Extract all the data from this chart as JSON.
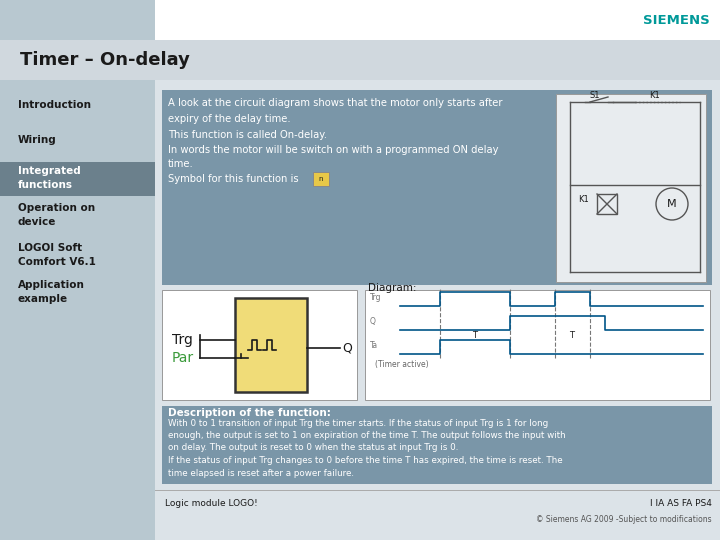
{
  "title": "Timer – On-delay",
  "siemens_color": "#009999",
  "bg_color": "#dce3e8",
  "sidebar_bg": "#b8c8d0",
  "title_bar_bg": "#d0d8de",
  "content_bg": "#7a96a8",
  "white": "#ffffff",
  "dark_text": "#1a1a1a",
  "green_text": "#3a9a3a",
  "signal_color": "#005588",
  "sidebar_items": [
    "Introduction",
    "Wiring",
    "Integrated\nfunctions",
    "Operation on\ndevice",
    "LOGOI Soft\nComfort V6.1",
    "Application\nexample"
  ],
  "sidebar_highlight": 2,
  "intro_text_lines": [
    "A look at the circuit diagram shows that the motor only starts after",
    "expiry of the delay time.",
    "This function is called On-delay.",
    "In words the motor will be switch on with a programmed ON delay",
    "time.",
    "Symbol for this function is"
  ],
  "desc_title": "Description of the function:",
  "desc_body": "With 0 to 1 transition of input Trg the timer starts. If the status of input Trg is 1 for long\nenough, the output is set to 1 on expiration of the time T. The output follows the input with\non delay. The output is reset to 0 when the status at input Trg is 0.\nIf the status of input Trg changes to 0 before the time T has expired, the time is reset. The\ntime elapsed is reset after a power failure.",
  "footer_left": "Logic module LOGO!",
  "footer_right": "I IA AS FA PS4",
  "footer_copy": "© Siemens AG 2009 -Subject to modifications",
  "diagram_label": "Diagram:",
  "timer_active_label": "(Timer active)"
}
